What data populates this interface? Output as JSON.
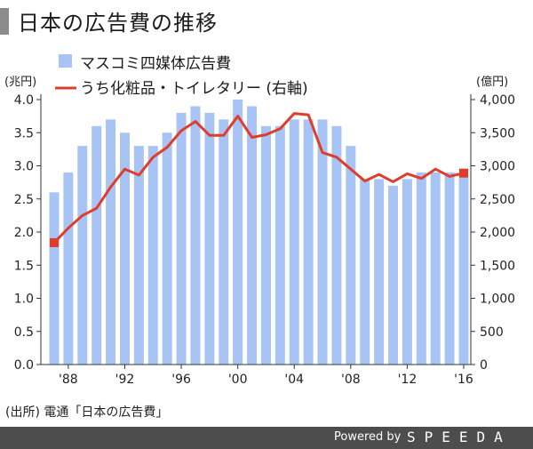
{
  "header": {
    "title": "日本の広告費の推移"
  },
  "source": "(出所) 電通「日本の広告費」",
  "footer": {
    "powered": "Powered by",
    "brand": "SPEEDA"
  },
  "chart_data": {
    "type": "bar",
    "x": [
      1987,
      1988,
      1989,
      1990,
      1991,
      1992,
      1993,
      1994,
      1995,
      1996,
      1997,
      1998,
      1999,
      2000,
      2001,
      2002,
      2003,
      2004,
      2005,
      2006,
      2007,
      2008,
      2009,
      2010,
      2011,
      2012,
      2013,
      2014,
      2015,
      2016
    ],
    "x_tick_values": [
      1988,
      1992,
      1996,
      2000,
      2004,
      2008,
      2012,
      2016
    ],
    "x_tick_labels": [
      "'88",
      "'92",
      "'96",
      "'00",
      "'04",
      "'08",
      "'12",
      "'16"
    ],
    "y_left": {
      "unit": "(兆円)",
      "range": [
        0,
        4.0
      ],
      "ticks": [
        "0.0",
        "0.5",
        "1.0",
        "1.5",
        "2.0",
        "2.5",
        "3.0",
        "3.5",
        "4.0"
      ]
    },
    "y_right": {
      "unit": "(億円)",
      "range": [
        0,
        4000
      ],
      "ticks": [
        "0",
        "500",
        "1,000",
        "1,500",
        "2,000",
        "2,500",
        "3,000",
        "3,500",
        "4,000"
      ]
    },
    "series": [
      {
        "name": "マスコミ四媒体広告費",
        "type": "bar",
        "axis": "left",
        "color": "#a8c4f5",
        "values": [
          2.6,
          2.9,
          3.3,
          3.6,
          3.7,
          3.5,
          3.3,
          3.3,
          3.5,
          3.8,
          3.9,
          3.8,
          3.7,
          4.0,
          3.9,
          3.6,
          3.6,
          3.7,
          3.7,
          3.7,
          3.6,
          3.3,
          2.8,
          2.8,
          2.7,
          2.8,
          2.9,
          2.9,
          2.9,
          2.85
        ]
      },
      {
        "name": "うち化粧品・トイレタリー (右軸)",
        "type": "line",
        "axis": "right",
        "color": "#e03c2c",
        "values": [
          1840,
          2060,
          2250,
          2360,
          2680,
          2950,
          2860,
          3130,
          3280,
          3530,
          3670,
          3460,
          3460,
          3750,
          3430,
          3470,
          3560,
          3790,
          3770,
          3200,
          3130,
          2950,
          2770,
          2870,
          2760,
          2880,
          2810,
          2950,
          2840,
          2890
        ],
        "highlight_points": [
          0,
          29
        ]
      }
    ],
    "legend": "top-left",
    "grid": false
  }
}
